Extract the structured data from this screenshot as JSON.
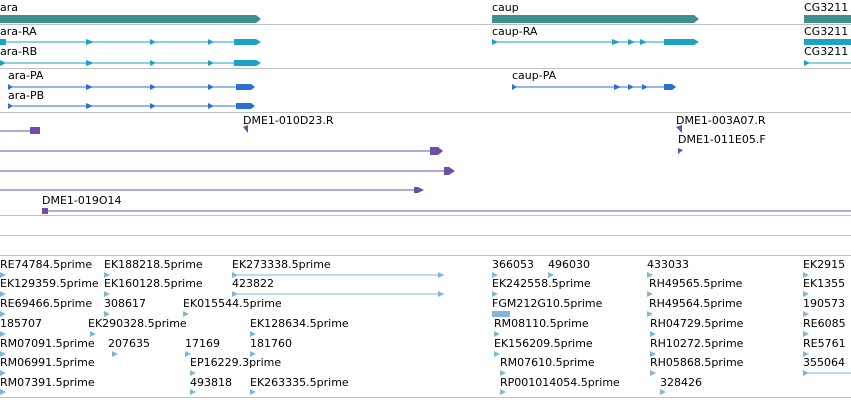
{
  "colors": {
    "gene": "#3f8f8f",
    "transcript_cyan": "#1aa3c4",
    "transcript_blue": "#2b6fd6",
    "clone": "#6e4fa8",
    "est": "#7fb6dc",
    "divider": "#b8c4c4"
  },
  "genes": {
    "items": [
      {
        "label": "ara"
      },
      {
        "label": "caup"
      },
      {
        "label": "CG3211"
      }
    ]
  },
  "transcripts_a": {
    "items": [
      {
        "label": "ara-RA"
      },
      {
        "label": "ara-RB"
      },
      {
        "label": "caup-RA"
      },
      {
        "label": "CG3211"
      },
      {
        "label": "CG3211"
      }
    ]
  },
  "transcripts_b": {
    "items": [
      {
        "label": "ara-PA"
      },
      {
        "label": "ara-PB"
      },
      {
        "label": "caup-PA"
      }
    ]
  },
  "clones": {
    "items": [
      {
        "label": "DME1-010D23.R"
      },
      {
        "label": "DME1-003A07.R"
      },
      {
        "label": "DME1-011E05.F"
      },
      {
        "label": "DME1-019O14"
      }
    ]
  },
  "ests": {
    "items": [
      {
        "label": "RE74784.5prime"
      },
      {
        "label": "EK188218.5prime"
      },
      {
        "label": "EK273338.5prime"
      },
      {
        "label": "366053"
      },
      {
        "label": "496030"
      },
      {
        "label": "433033"
      },
      {
        "label": "EK2915"
      },
      {
        "label": "EK129359.5prime"
      },
      {
        "label": "EK160128.5prime"
      },
      {
        "label": "423822"
      },
      {
        "label": "EK242558.5prime"
      },
      {
        "label": "RH49565.5prime"
      },
      {
        "label": "EK1355"
      },
      {
        "label": "RE69466.5prime"
      },
      {
        "label": "308617"
      },
      {
        "label": "EK015544.5prime"
      },
      {
        "label": "FGM212G10.5prime"
      },
      {
        "label": "RH49564.5prime"
      },
      {
        "label": "190573"
      },
      {
        "label": "185707"
      },
      {
        "label": "EK290328.5prime"
      },
      {
        "label": "EK128634.5prime"
      },
      {
        "label": "RM08110.5prime"
      },
      {
        "label": "RH04729.5prime"
      },
      {
        "label": "RE6085"
      },
      {
        "label": "RM07091.5prime"
      },
      {
        "label": "207635"
      },
      {
        "label": "17169"
      },
      {
        "label": "181760"
      },
      {
        "label": "EK156209.5prime"
      },
      {
        "label": "RH10272.5prime"
      },
      {
        "label": "RE5761"
      },
      {
        "label": "RM06991.5prime"
      },
      {
        "label": "EP16229.3prime"
      },
      {
        "label": "RM07610.5prime"
      },
      {
        "label": "RH05868.5prime"
      },
      {
        "label": "355064"
      },
      {
        "label": "RM07391.5prime"
      },
      {
        "label": "493818"
      },
      {
        "label": "EK263335.5prime"
      },
      {
        "label": "RP001014054.5prime"
      },
      {
        "label": "328426"
      }
    ]
  }
}
